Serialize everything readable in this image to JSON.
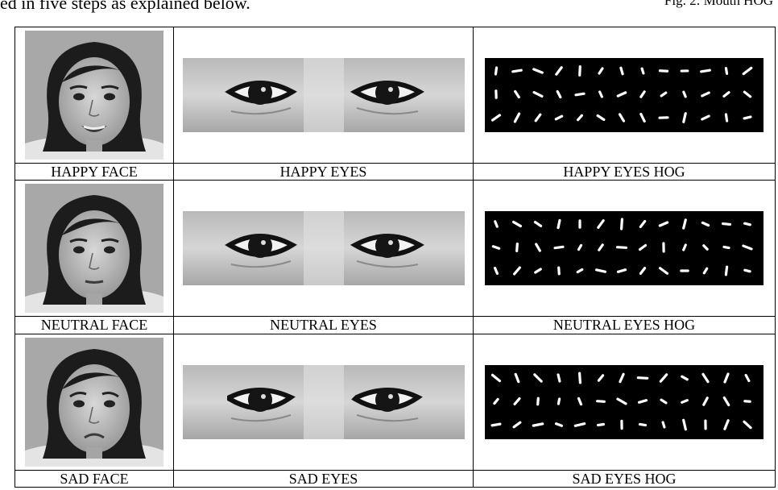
{
  "header": {
    "intro_text": "ed in five steps as explained below.",
    "figure_caption": "Fig. 2: Mouth HOG"
  },
  "rows": [
    {
      "face_label": "HAPPY FACE",
      "eyes_label": "HAPPY EYES",
      "hog_label": "HAPPY EYES HOG",
      "expression": "happy"
    },
    {
      "face_label": "NEUTRAL FACE",
      "eyes_label": "NEUTRAL EYES",
      "hog_label": "NEUTRAL EYES HOG",
      "expression": "neutral"
    },
    {
      "face_label": "SAD FACE",
      "eyes_label": "SAD EYES",
      "hog_label": "SAD EYES HOG",
      "expression": "sad"
    }
  ],
  "hog_grid": {
    "rows": 3,
    "cols": 13
  },
  "colors": {
    "hog_background": "#000000",
    "hog_mark": "#ffffff",
    "photo_tone": "#9a9a9a"
  }
}
